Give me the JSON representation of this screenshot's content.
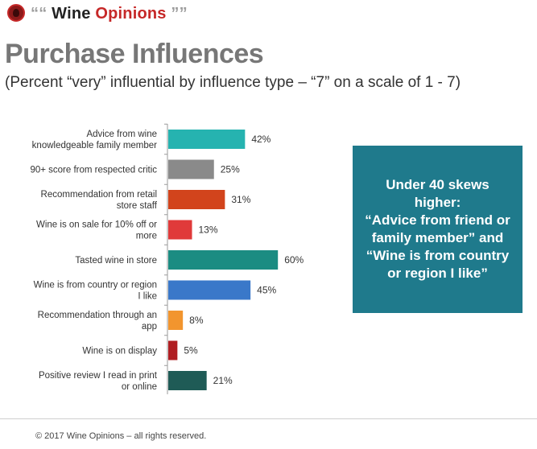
{
  "header": {
    "open_quote": "“",
    "brand_word1": "Wine",
    "brand_word2": "Opinions",
    "close_quote": "”",
    "colors": {
      "brand_red": "#c62828",
      "quote_gray": "#9e9e9e"
    },
    "logo_icon": "wine-logo-icon"
  },
  "chart_data": {
    "type": "bar",
    "orientation": "horizontal",
    "title": "Purchase Influences",
    "subtitle": "(Percent “very” influential by influence type – “7” on a scale of 1 - 7)",
    "unit": "%",
    "grid": false,
    "categories": [
      [
        "Advice from wine",
        "knowledgeable family member"
      ],
      [
        "90+ score from respected critic"
      ],
      [
        "Recommendation from retail",
        "store staff"
      ],
      [
        "Wine is on sale for 10% off or",
        "more"
      ],
      [
        "Tasted wine in store"
      ],
      [
        "Wine is from country or region",
        "I like"
      ],
      [
        "Recommendation through an",
        "app"
      ],
      [
        "Wine is on display"
      ],
      [
        "Positive review I read in print",
        "or online"
      ]
    ],
    "values": [
      42,
      25,
      31,
      13,
      60,
      45,
      8,
      5,
      21
    ],
    "value_labels": [
      "42%",
      "25%",
      "31%",
      "13%",
      "60%",
      "45%",
      "8%",
      "5%",
      "21%"
    ],
    "colors": [
      "#26b3b0",
      "#8a8a8a",
      "#d2441c",
      "#e03a3a",
      "#1b8c82",
      "#3a78c9",
      "#f2952e",
      "#b01e22",
      "#1f5b56"
    ],
    "xlim": [
      0,
      100
    ]
  },
  "callout": {
    "lines": [
      "Under 40 skews",
      "higher:",
      "“Advice from friend or",
      "family member” and",
      "“Wine is from country",
      "or region I like”"
    ],
    "color": "#1f7a8c"
  },
  "footer": {
    "copyright": "© 2017 Wine Opinions – all rights reserved."
  }
}
